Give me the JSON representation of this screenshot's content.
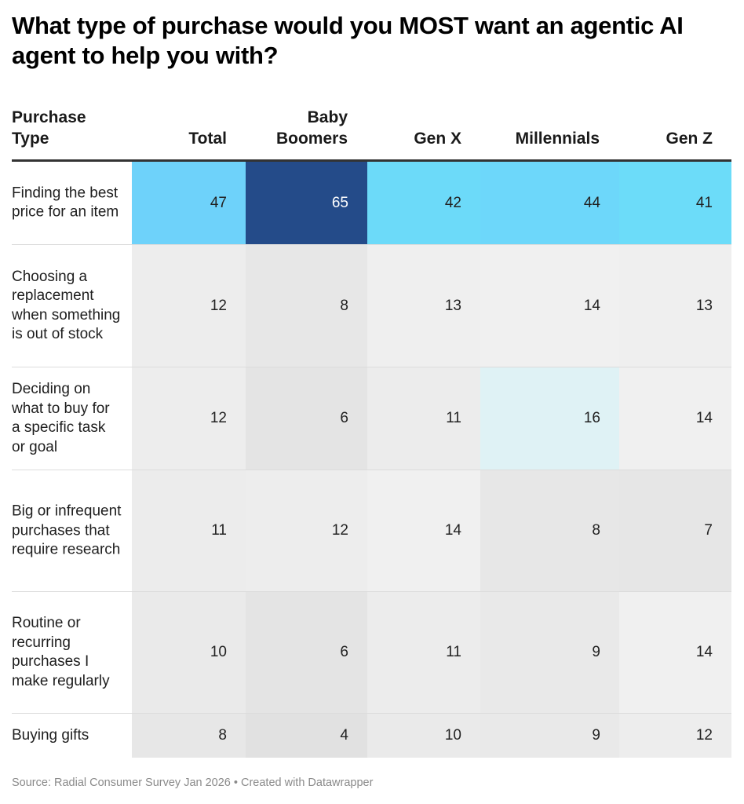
{
  "chart_data": {
    "type": "heatmap",
    "title": "What type of purchase would you MOST want an agentic AI agent to help you with?",
    "row_header": "Purchase Type",
    "columns": [
      "Total",
      "Baby Boomers",
      "Gen X",
      "Millennials",
      "Gen Z"
    ],
    "rows": [
      {
        "label": "Finding the best price for an item",
        "values": [
          47,
          65,
          42,
          44,
          41
        ]
      },
      {
        "label": "Choosing a replacement when something is out of stock",
        "values": [
          12,
          8,
          13,
          14,
          13
        ]
      },
      {
        "label": "Deciding on what to buy for a specific task or goal",
        "values": [
          12,
          6,
          11,
          16,
          14
        ]
      },
      {
        "label": "Big or infrequent purchases that require research",
        "values": [
          11,
          12,
          14,
          8,
          7
        ]
      },
      {
        "label": "Routine or recurring purchases I make regularly",
        "values": [
          10,
          6,
          11,
          9,
          14
        ]
      },
      {
        "label": "Buying gifts",
        "values": [
          8,
          4,
          10,
          9,
          12
        ]
      }
    ],
    "color_scale": {
      "stops": [
        {
          "value": 4,
          "color": "#e1e1e1"
        },
        {
          "value": 14,
          "color": "#f0f0f0"
        },
        {
          "value": 16,
          "color": "#dff2f5"
        },
        {
          "value": 41,
          "color": "#6cdcf9"
        },
        {
          "value": 47,
          "color": "#6ed2fa"
        },
        {
          "value": 65,
          "color": "#244b89"
        }
      ],
      "light_text": "#ffffff",
      "dark_text": "#222222"
    }
  },
  "footer": {
    "source": "Source: Radial Consumer Survey Jan 2026 • Created with Datawrapper"
  }
}
